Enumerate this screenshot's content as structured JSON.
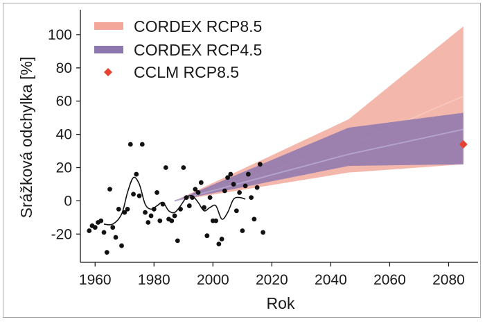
{
  "chart_data": {
    "type": "line",
    "xlabel": "Rok",
    "ylabel": "Srážková odchylka [%]",
    "xlim": [
      1955,
      2090
    ],
    "ylim": [
      -37,
      115
    ],
    "x_ticks": [
      1960,
      1980,
      2000,
      2020,
      2040,
      2060,
      2080
    ],
    "y_ticks": [
      -20,
      0,
      20,
      40,
      60,
      80,
      100
    ],
    "y_tick_labels": [
      "-20",
      "0",
      "20",
      "40",
      "60",
      "80",
      "100"
    ],
    "grid": false,
    "legend_position": "top-left",
    "colors": {
      "rcp85": "#f2a79a",
      "rcp85_mean": "#f7c5bd",
      "rcp45": "#8c77ae",
      "rcp45_mean": "#b3a3cc",
      "cclm": "#e8412f",
      "observed": "#111111"
    },
    "legend": [
      {
        "label": "CORDEX RCP8.5",
        "kind": "band",
        "color_key": "rcp85"
      },
      {
        "label": "CORDEX RCP4.5",
        "kind": "band",
        "color_key": "rcp45"
      },
      {
        "label": "CCLM RCP8.5",
        "kind": "marker",
        "color_key": "cclm"
      }
    ],
    "series": [
      {
        "name": "CORDEX RCP8.5",
        "kind": "band",
        "x": [
          1987,
          2046,
          2085
        ],
        "lower": [
          0,
          17,
          22
        ],
        "upper": [
          0,
          49,
          105
        ],
        "mean": [
          0,
          33,
          63
        ]
      },
      {
        "name": "CORDEX RCP4.5",
        "kind": "band",
        "x": [
          1987,
          2046,
          2085
        ],
        "lower": [
          0,
          21,
          22
        ],
        "upper": [
          0,
          44,
          53
        ],
        "mean": [
          0,
          28,
          43
        ]
      },
      {
        "name": "CCLM RCP8.5",
        "kind": "marker",
        "x": [
          2085
        ],
        "y": [
          34
        ]
      },
      {
        "kind": "scatter",
        "points": [
          [
            1958,
            -18
          ],
          [
            1959,
            -15
          ],
          [
            1960,
            -16
          ],
          [
            1961,
            -13
          ],
          [
            1962,
            -12
          ],
          [
            1963,
            -19
          ],
          [
            1964,
            -31
          ],
          [
            1965,
            7
          ],
          [
            1966,
            -16
          ],
          [
            1967,
            -22
          ],
          [
            1968,
            -5
          ],
          [
            1969,
            -27
          ],
          [
            1970,
            -7
          ],
          [
            1971,
            -5
          ],
          [
            1972,
            34
          ],
          [
            1973,
            4
          ],
          [
            1974,
            16
          ],
          [
            1975,
            3
          ],
          [
            1976,
            34
          ],
          [
            1977,
            -7
          ],
          [
            1978,
            -13
          ],
          [
            1979,
            -9
          ],
          [
            1980,
            -5
          ],
          [
            1981,
            5
          ],
          [
            1982,
            -12
          ],
          [
            1983,
            -2
          ],
          [
            1984,
            20
          ],
          [
            1985,
            -11
          ],
          [
            1986,
            -12
          ],
          [
            1987,
            -9
          ],
          [
            1988,
            -24
          ],
          [
            1989,
            -5
          ],
          [
            1990,
            20
          ],
          [
            1991,
            2
          ],
          [
            1992,
            -3
          ],
          [
            1993,
            2
          ],
          [
            1994,
            7
          ],
          [
            1995,
            5
          ],
          [
            1996,
            11
          ],
          [
            1997,
            -4
          ],
          [
            1998,
            -21
          ],
          [
            1999,
            2
          ],
          [
            2000,
            -12
          ],
          [
            2001,
            -12
          ],
          [
            2002,
            -26
          ],
          [
            2003,
            -23
          ],
          [
            2004,
            6
          ],
          [
            2005,
            14
          ],
          [
            2006,
            16
          ],
          [
            2007,
            10
          ],
          [
            2008,
            -6
          ],
          [
            2009,
            5
          ],
          [
            2010,
            -18
          ],
          [
            2011,
            9
          ],
          [
            2012,
            16
          ],
          [
            2013,
            2
          ],
          [
            2014,
            -11
          ],
          [
            2015,
            8
          ],
          [
            2016,
            22
          ],
          [
            2017,
            -19
          ]
        ]
      },
      {
        "kind": "smooth_line",
        "x": [
          1963,
          1966,
          1969,
          1971,
          1973,
          1975,
          1977,
          1979,
          1981,
          1983,
          1985,
          1987,
          1989,
          1991,
          1993,
          1995,
          1997,
          1999,
          2001,
          2003,
          2005,
          2007,
          2009,
          2011
        ],
        "y": [
          -14,
          -14,
          -8,
          5,
          14,
          10,
          -2,
          -5,
          -3,
          -1,
          -6,
          -7,
          -3,
          2,
          3,
          -1,
          -6,
          -4,
          -3,
          -11,
          -7,
          1,
          2,
          1
        ]
      }
    ]
  }
}
